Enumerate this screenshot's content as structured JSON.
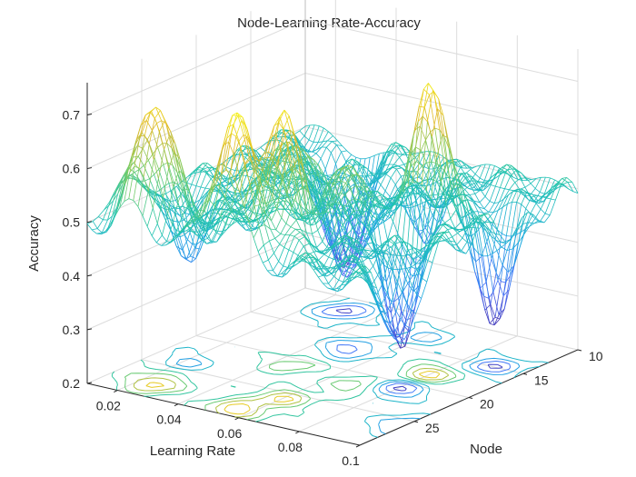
{
  "chart_data": {
    "type": "surface-mesh-with-contour",
    "title": "Node-Learning Rate-Accuracy",
    "xlabel": "Learning Rate",
    "ylabel": "Node",
    "zlabel": "Accuracy",
    "xlim": [
      0.01,
      0.1
    ],
    "ylim": [
      10,
      30
    ],
    "zlim": [
      0.2,
      0.76
    ],
    "x_ticks": [
      0.02,
      0.04,
      0.06,
      0.08,
      0.1
    ],
    "x_tick_labels": [
      "0.02",
      "0.04",
      "0.06",
      "0.08",
      "0.1"
    ],
    "y_ticks": [
      10,
      15,
      20,
      25
    ],
    "y_tick_labels": [
      "10",
      "15",
      "20",
      "25"
    ],
    "z_ticks": [
      0.2,
      0.3,
      0.4,
      0.5,
      0.6,
      0.7
    ],
    "z_tick_labels": [
      "0.2",
      "0.3",
      "0.4",
      "0.5",
      "0.6",
      "0.7"
    ],
    "colormap": [
      "#3e26a8",
      "#4772fa",
      "#1ca9df",
      "#21c4ad",
      "#7ccc63",
      "#e0b929",
      "#f9fb15"
    ],
    "grid": true,
    "contour_projection": "floor",
    "base_level": 0.5,
    "features": [
      {
        "learning_rate": 0.025,
        "node": 28,
        "accuracy": 0.74
      },
      {
        "learning_rate": 0.055,
        "node": 29,
        "accuracy": 0.76
      },
      {
        "learning_rate": 0.06,
        "node": 26,
        "accuracy": 0.71
      },
      {
        "learning_rate": 0.08,
        "node": 18,
        "accuracy": 0.73
      },
      {
        "learning_rate": 0.07,
        "node": 22,
        "accuracy": 0.64
      },
      {
        "learning_rate": 0.045,
        "node": 21,
        "accuracy": 0.62
      },
      {
        "learning_rate": 0.013,
        "node": 26,
        "accuracy": 0.57
      },
      {
        "learning_rate": 0.03,
        "node": 12,
        "accuracy": 0.28
      },
      {
        "learning_rate": 0.08,
        "node": 21,
        "accuracy": 0.27
      },
      {
        "learning_rate": 0.09,
        "node": 15,
        "accuracy": 0.3
      },
      {
        "learning_rate": 0.05,
        "node": 17,
        "accuracy": 0.32
      },
      {
        "learning_rate": 0.02,
        "node": 24,
        "accuracy": 0.4
      },
      {
        "learning_rate": 0.1,
        "node": 26,
        "accuracy": 0.33
      },
      {
        "learning_rate": 0.06,
        "node": 13,
        "accuracy": 0.4
      }
    ]
  }
}
